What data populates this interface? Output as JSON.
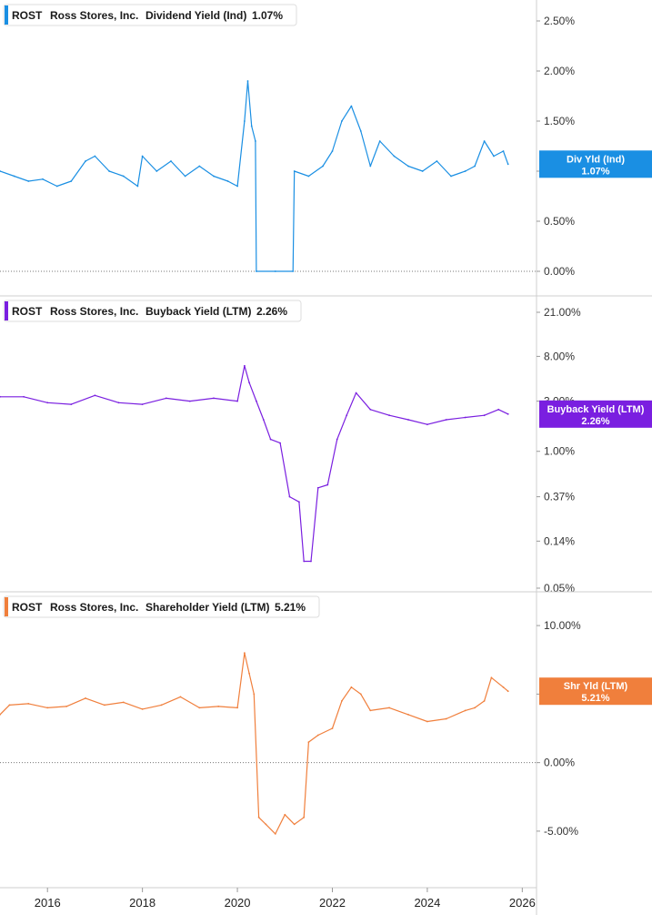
{
  "chart_data": [
    {
      "type": "line",
      "legend": {
        "ticker": "ROST",
        "company": "Ross Stores, Inc.",
        "metric": "Dividend Yield (Ind)",
        "value": "1.07%"
      },
      "tag": {
        "label": "Div Yld (Ind)",
        "value": "1.07%"
      },
      "color": "#1a8fe3",
      "scale": "linear",
      "ylim": [
        0,
        2.6
      ],
      "ticks": [
        {
          "v": 0,
          "label": "0.00%"
        },
        {
          "v": 0.5,
          "label": "0.50%"
        },
        {
          "v": 1.0,
          "label": "1.00%"
        },
        {
          "v": 1.5,
          "label": "1.50%"
        },
        {
          "v": 2.0,
          "label": "2.00%"
        },
        {
          "v": 2.5,
          "label": "2.50%"
        }
      ],
      "zero_line": true,
      "x": [
        2015.0,
        2015.3,
        2015.6,
        2015.9,
        2016.2,
        2016.5,
        2016.8,
        2017.0,
        2017.3,
        2017.6,
        2017.9,
        2018.0,
        2018.3,
        2018.6,
        2018.9,
        2019.2,
        2019.5,
        2019.8,
        2020.0,
        2020.15,
        2020.22,
        2020.3,
        2020.38,
        2020.4,
        2020.8,
        2021.17,
        2021.2,
        2021.5,
        2021.8,
        2022.0,
        2022.2,
        2022.4,
        2022.6,
        2022.8,
        2023.0,
        2023.3,
        2023.6,
        2023.9,
        2024.2,
        2024.5,
        2024.8,
        2025.0,
        2025.2,
        2025.4,
        2025.6,
        2025.7
      ],
      "values": [
        1.0,
        0.95,
        0.9,
        0.92,
        0.85,
        0.9,
        1.1,
        1.15,
        1.0,
        0.95,
        0.85,
        1.15,
        1.0,
        1.1,
        0.95,
        1.05,
        0.95,
        0.9,
        0.85,
        1.5,
        1.9,
        1.45,
        1.3,
        0,
        0,
        0,
        1.0,
        0.95,
        1.05,
        1.2,
        1.5,
        1.65,
        1.4,
        1.05,
        1.3,
        1.15,
        1.05,
        1.0,
        1.1,
        0.95,
        1.0,
        1.05,
        1.3,
        1.15,
        1.2,
        1.07
      ]
    },
    {
      "type": "line",
      "legend": {
        "ticker": "ROST",
        "company": "Ross Stores, Inc.",
        "metric": "Buyback Yield (LTM)",
        "value": "2.26%"
      },
      "tag": {
        "label": "Buyback Yield (LTM)",
        "value": "2.26%"
      },
      "color": "#7a1fe0",
      "scale": "log",
      "ylim": [
        0.05,
        21
      ],
      "ticks": [
        {
          "v": 0.05,
          "label": "0.05%"
        },
        {
          "v": 0.14,
          "label": "0.14%"
        },
        {
          "v": 0.37,
          "label": "0.37%"
        },
        {
          "v": 1.0,
          "label": "1.00%"
        },
        {
          "v": 3.0,
          "label": "3.00%"
        },
        {
          "v": 8.0,
          "label": "8.00%"
        },
        {
          "v": 21.0,
          "label": "21.00%"
        }
      ],
      "zero_line": false,
      "x": [
        2015.0,
        2015.5,
        2016.0,
        2016.5,
        2017.0,
        2017.5,
        2018.0,
        2018.5,
        2019.0,
        2019.5,
        2020.0,
        2020.15,
        2020.25,
        2020.4,
        2020.55,
        2020.7,
        2020.9,
        2021.1,
        2021.3,
        2021.4,
        2021.55,
        2021.7,
        2021.9,
        2022.1,
        2022.3,
        2022.5,
        2022.8,
        2023.2,
        2023.6,
        2024.0,
        2024.4,
        2024.8,
        2025.2,
        2025.5,
        2025.7
      ],
      "values": [
        3.3,
        3.3,
        2.9,
        2.8,
        3.4,
        2.9,
        2.8,
        3.2,
        3.0,
        3.2,
        3.0,
        6.5,
        4.5,
        3.0,
        2.0,
        1.3,
        1.2,
        0.37,
        0.33,
        0.09,
        0.09,
        0.45,
        0.48,
        1.3,
        2.2,
        3.6,
        2.5,
        2.2,
        2.0,
        1.8,
        2.0,
        2.1,
        2.2,
        2.5,
        2.26
      ]
    },
    {
      "type": "line",
      "legend": {
        "ticker": "ROST",
        "company": "Ross Stores, Inc.",
        "metric": "Shareholder Yield (LTM)",
        "value": "5.21%"
      },
      "tag": {
        "label": "Shr Yld (LTM)",
        "value": "5.21%"
      },
      "color": "#f07f3c",
      "scale": "linear",
      "ylim": [
        -7,
        12
      ],
      "ticks": [
        {
          "v": -5,
          "label": "-5.00%"
        },
        {
          "v": 0,
          "label": "0.00%"
        },
        {
          "v": 5,
          "label": "5.00%"
        },
        {
          "v": 10,
          "label": "10.00%"
        }
      ],
      "zero_line": true,
      "x": [
        2015.0,
        2015.2,
        2015.6,
        2016.0,
        2016.4,
        2016.8,
        2017.2,
        2017.6,
        2018.0,
        2018.4,
        2018.8,
        2019.2,
        2019.6,
        2020.0,
        2020.15,
        2020.25,
        2020.35,
        2020.45,
        2020.6,
        2020.8,
        2021.0,
        2021.2,
        2021.4,
        2021.5,
        2021.7,
        2022.0,
        2022.2,
        2022.4,
        2022.6,
        2022.8,
        2023.2,
        2023.6,
        2024.0,
        2024.4,
        2024.8,
        2025.0,
        2025.2,
        2025.35,
        2025.6,
        2025.7
      ],
      "values": [
        3.5,
        4.2,
        4.3,
        4.0,
        4.1,
        4.7,
        4.2,
        4.4,
        3.9,
        4.2,
        4.8,
        4.0,
        4.1,
        4.0,
        8.0,
        6.5,
        5.0,
        -4.0,
        -4.5,
        -5.2,
        -3.8,
        -4.5,
        -4.0,
        1.5,
        2.0,
        2.5,
        4.5,
        5.5,
        5.0,
        3.8,
        4.0,
        3.5,
        3.0,
        3.2,
        3.8,
        4.0,
        4.5,
        6.2,
        5.5,
        5.21
      ]
    }
  ],
  "x_axis": {
    "xlim": [
      2015.0,
      2026.3
    ],
    "ticks": [
      {
        "v": 2016,
        "label": "2016"
      },
      {
        "v": 2018,
        "label": "2018"
      },
      {
        "v": 2020,
        "label": "2020"
      },
      {
        "v": 2022,
        "label": "2022"
      },
      {
        "v": 2024,
        "label": "2024"
      },
      {
        "v": 2026,
        "label": "2026"
      }
    ]
  }
}
